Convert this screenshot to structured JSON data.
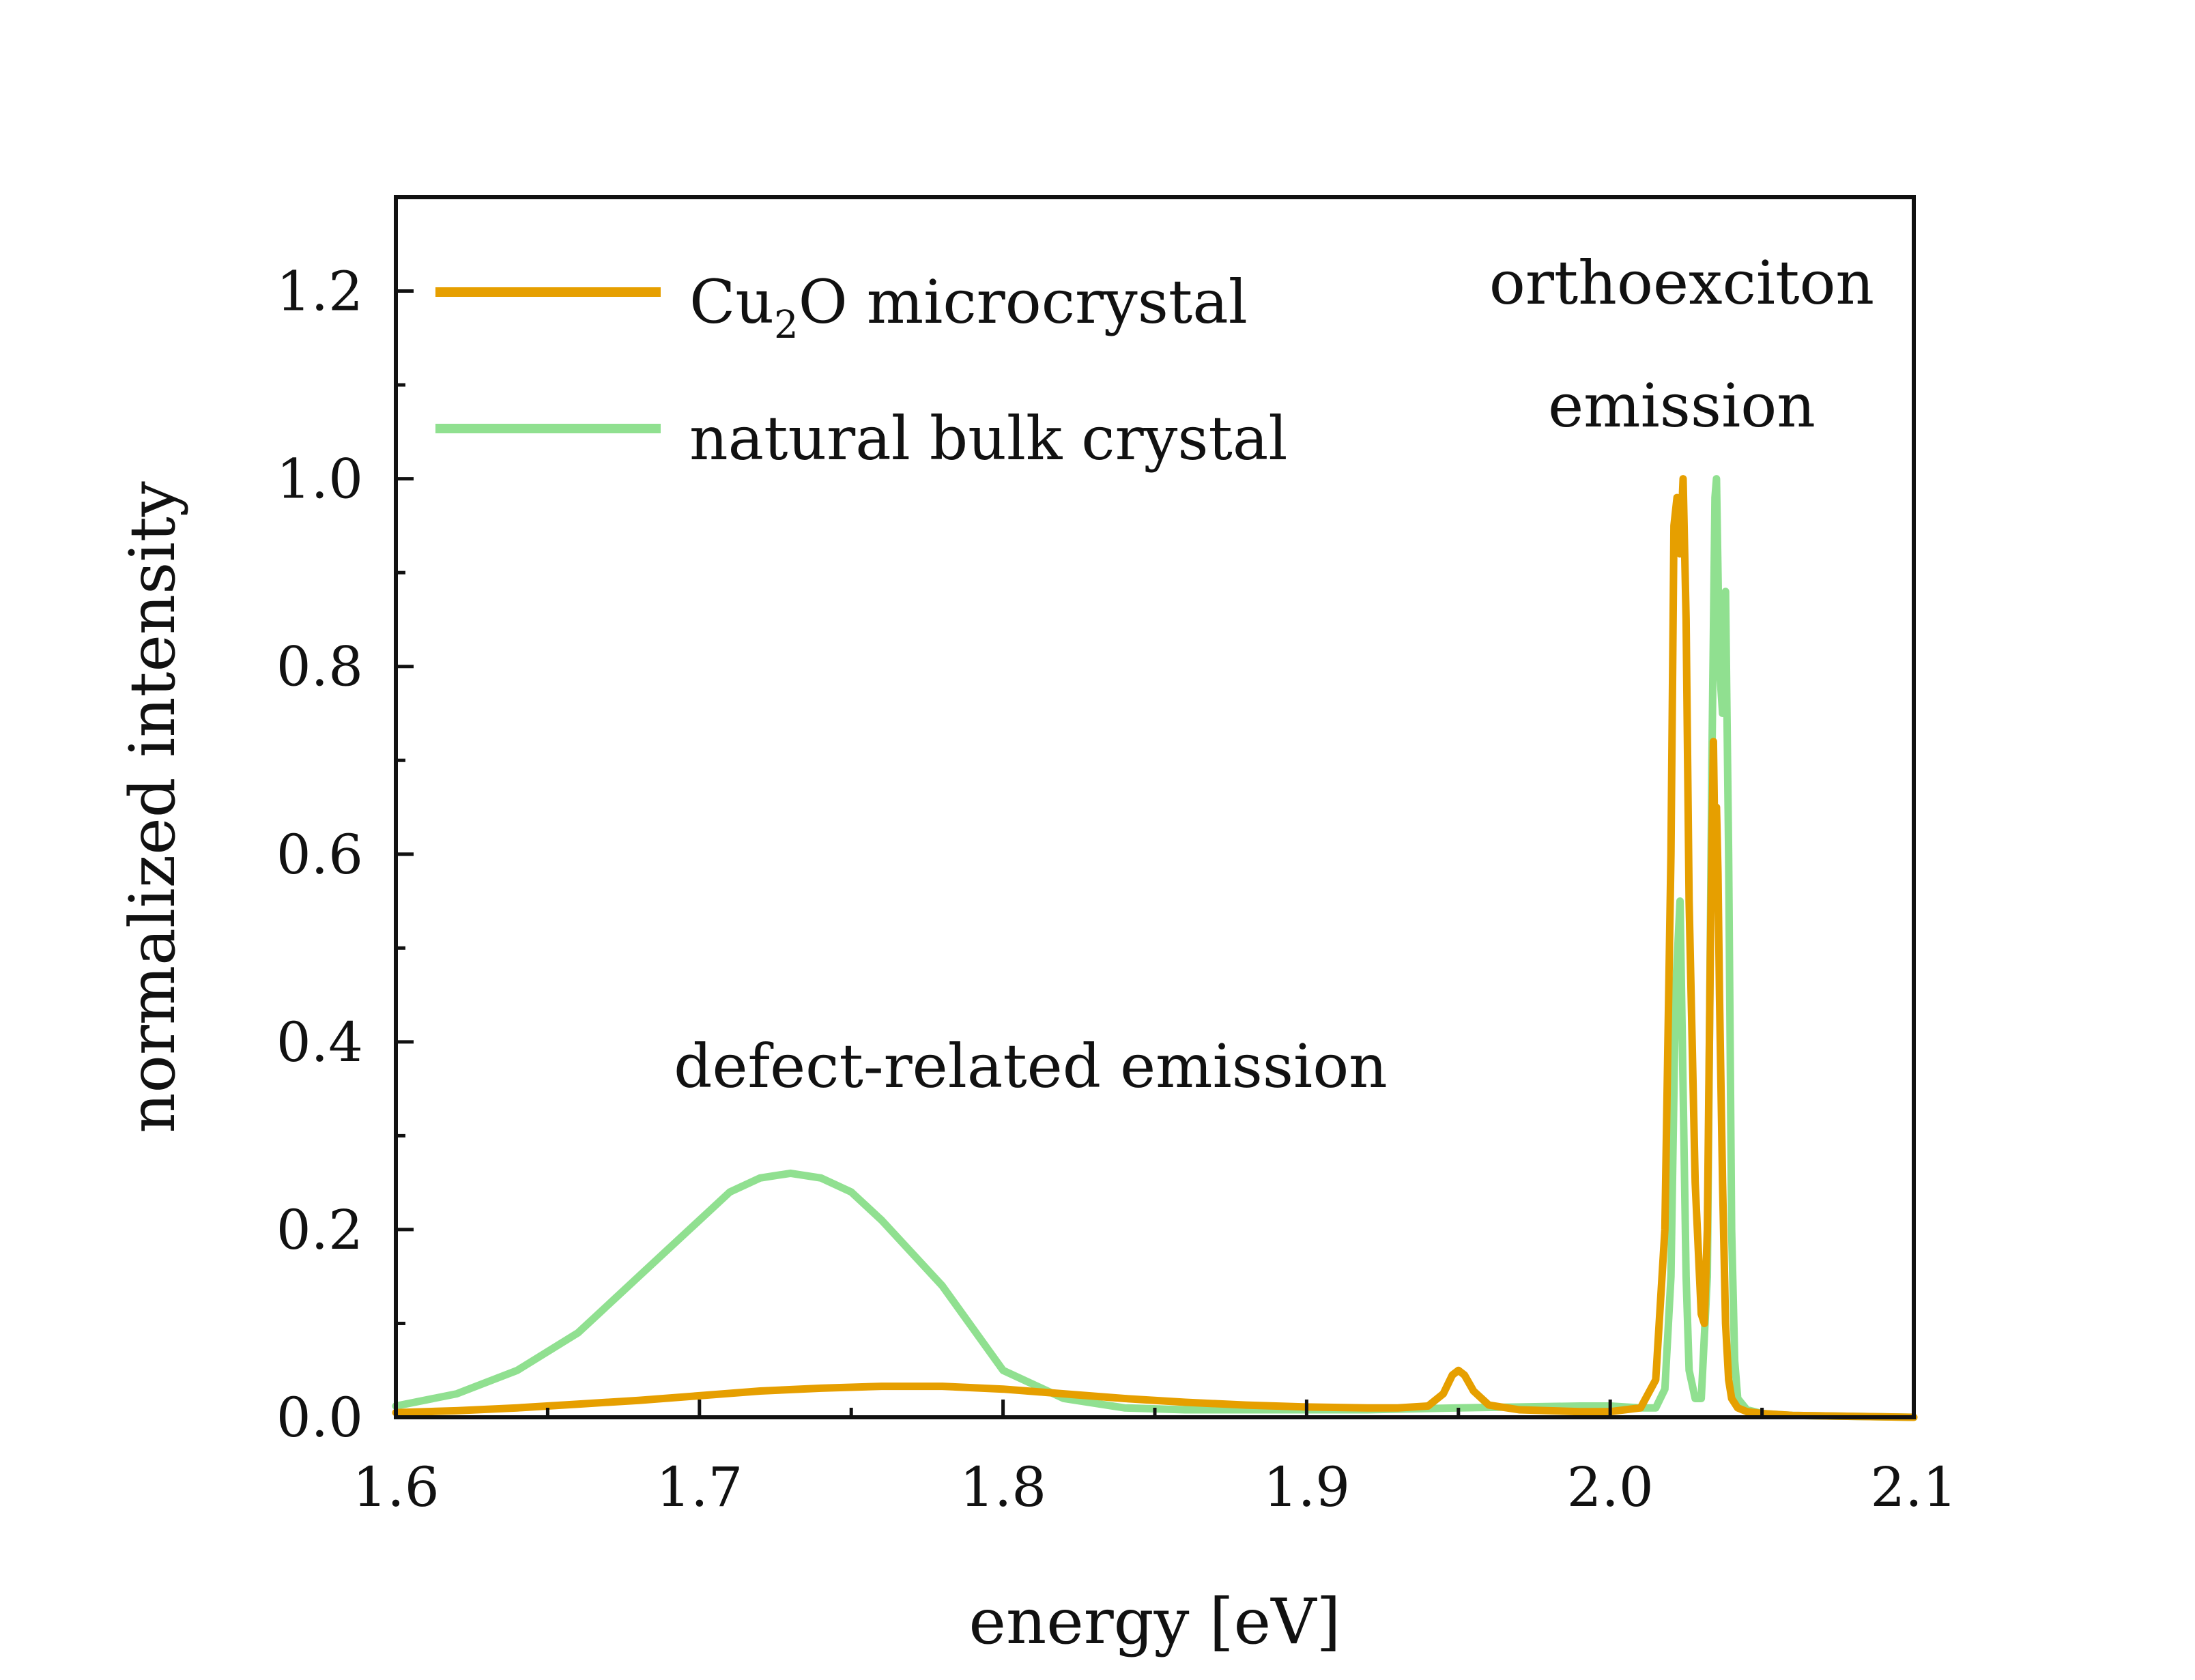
{
  "chart_data": {
    "type": "line",
    "title": "",
    "xlabel": "energy [eV]",
    "ylabel": "normalized intensity",
    "xlim": [
      1.6,
      2.1
    ],
    "ylim": [
      0.0,
      1.3
    ],
    "x_ticks": [
      1.6,
      1.7,
      1.8,
      1.9,
      2.0,
      2.1
    ],
    "x_tick_labels": [
      "1.6",
      "1.7",
      "1.8",
      "1.9",
      "2.0",
      "2.1"
    ],
    "y_ticks": [
      0.0,
      0.2,
      0.4,
      0.6,
      0.8,
      1.0,
      1.2
    ],
    "y_tick_labels": [
      "0.0",
      "0.2",
      "0.4",
      "0.6",
      "0.8",
      "1.0",
      "1.2"
    ],
    "grid": false,
    "legend_position": "top-left",
    "series": [
      {
        "name": "Cu2O microcrystal",
        "legend_main": "Cu",
        "legend_sub": "2",
        "legend_rest": "O microcrystal",
        "color": "#E69F00",
        "x": [
          1.6,
          1.62,
          1.64,
          1.66,
          1.68,
          1.7,
          1.72,
          1.74,
          1.76,
          1.78,
          1.8,
          1.82,
          1.84,
          1.86,
          1.88,
          1.9,
          1.92,
          1.93,
          1.94,
          1.945,
          1.948,
          1.95,
          1.952,
          1.955,
          1.96,
          1.97,
          1.98,
          1.99,
          2.0,
          2.01,
          2.015,
          2.018,
          2.02,
          2.021,
          2.022,
          2.023,
          2.024,
          2.025,
          2.026,
          2.028,
          2.03,
          2.031,
          2.032,
          2.033,
          2.034,
          2.0345,
          2.035,
          2.0355,
          2.036,
          2.037,
          2.038,
          2.039,
          2.04,
          2.042,
          2.045,
          2.05,
          2.06,
          2.08,
          2.1
        ],
        "y": [
          0.005,
          0.007,
          0.01,
          0.014,
          0.018,
          0.023,
          0.028,
          0.031,
          0.033,
          0.033,
          0.03,
          0.025,
          0.02,
          0.016,
          0.013,
          0.011,
          0.01,
          0.01,
          0.012,
          0.025,
          0.045,
          0.05,
          0.045,
          0.028,
          0.013,
          0.008,
          0.007,
          0.006,
          0.006,
          0.01,
          0.04,
          0.2,
          0.6,
          0.95,
          0.98,
          0.92,
          1.0,
          0.85,
          0.55,
          0.25,
          0.11,
          0.1,
          0.2,
          0.5,
          0.72,
          0.6,
          0.65,
          0.58,
          0.45,
          0.25,
          0.1,
          0.04,
          0.02,
          0.01,
          0.006,
          0.004,
          0.002,
          0.001,
          0.0
        ]
      },
      {
        "name": "natural bulk crystal",
        "color": "#90E090",
        "x": [
          1.6,
          1.62,
          1.64,
          1.66,
          1.68,
          1.7,
          1.71,
          1.72,
          1.73,
          1.74,
          1.75,
          1.76,
          1.78,
          1.8,
          1.82,
          1.84,
          1.86,
          1.88,
          1.9,
          1.92,
          1.95,
          1.97,
          1.99,
          2.0,
          2.01,
          2.015,
          2.018,
          2.02,
          2.0215,
          2.023,
          2.024,
          2.025,
          2.026,
          2.028,
          2.03,
          2.032,
          2.0335,
          2.0345,
          2.035,
          2.036,
          2.037,
          2.038,
          2.039,
          2.04,
          2.041,
          2.042,
          2.045,
          2.05,
          2.06,
          2.08,
          2.1
        ],
        "y": [
          0.012,
          0.025,
          0.05,
          0.09,
          0.15,
          0.21,
          0.24,
          0.255,
          0.26,
          0.255,
          0.24,
          0.21,
          0.14,
          0.05,
          0.02,
          0.01,
          0.008,
          0.008,
          0.008,
          0.008,
          0.01,
          0.011,
          0.012,
          0.012,
          0.01,
          0.01,
          0.03,
          0.15,
          0.45,
          0.55,
          0.35,
          0.15,
          0.05,
          0.02,
          0.02,
          0.15,
          0.7,
          0.98,
          1.0,
          0.8,
          0.75,
          0.88,
          0.6,
          0.2,
          0.06,
          0.02,
          0.008,
          0.004,
          0.002,
          0.001,
          0.0
        ]
      }
    ],
    "annotations": {
      "ortho_line1": "orthoexciton",
      "ortho_line2": "emission",
      "defect": "defect-related emission"
    }
  }
}
